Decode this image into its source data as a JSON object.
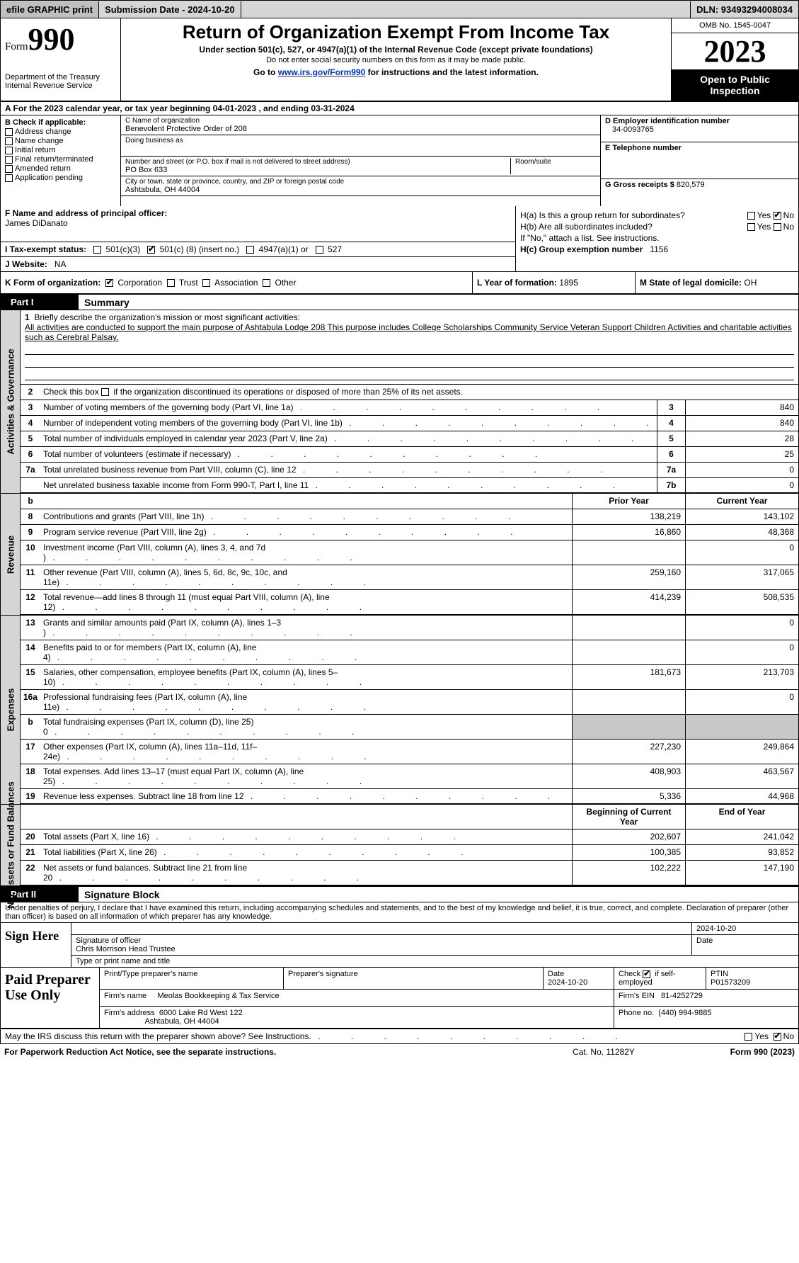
{
  "colors": {
    "bg_grey": "#d6d6d6",
    "cell_grey": "#c8c8c8",
    "black": "#000000",
    "link": "#0033cc"
  },
  "topbar": {
    "efile": "efile GRAPHIC print",
    "submission": "Submission Date - 2024-10-20",
    "dln": "DLN: 93493294008034"
  },
  "header": {
    "form_word": "Form",
    "form_num": "990",
    "title": "Return of Organization Exempt From Income Tax",
    "subtitle": "Under section 501(c), 527, or 4947(a)(1) of the Internal Revenue Code (except private foundations)",
    "note1": "Do not enter social security numbers on this form as it may be made public.",
    "note2_pre": "Go to ",
    "note2_link": "www.irs.gov/Form990",
    "note2_post": " for instructions and the latest information.",
    "dept": "Department of the Treasury Internal Revenue Service",
    "omb": "OMB No. 1545-0047",
    "year": "2023",
    "open": "Open to Public Inspection"
  },
  "line_a": "A  For the 2023 calendar year, or tax year beginning 04-01-2023    , and ending 03-31-2024",
  "box_b": {
    "heading": "B Check if applicable:",
    "items": [
      "Address change",
      "Name change",
      "Initial return",
      "Final return/terminated",
      "Amended return",
      "Application pending"
    ]
  },
  "box_c": {
    "name_label": "C Name of organization",
    "name": "Benevolent Protective Order of 208",
    "dba_label": "Doing business as",
    "addr_label": "Number and street (or P.O. box if mail is not delivered to street address)",
    "addr": "PO Box 633",
    "room_label": "Room/suite",
    "city_label": "City or town, state or province, country, and ZIP or foreign postal code",
    "city": "Ashtabula, OH   44004"
  },
  "box_de": {
    "ein_label": "D Employer identification number",
    "ein": "34-0093765",
    "phone_label": "E Telephone number",
    "gross_label": "G Gross receipts $",
    "gross": "820,579"
  },
  "box_f": {
    "label": "F  Name and address of principal officer:",
    "value": "James DiDanato"
  },
  "box_h": {
    "a_label": "H(a)  Is this a group return for subordinates?",
    "b_label": "H(b)  Are all subordinates included?",
    "b_note": "If \"No,\" attach a list. See instructions.",
    "c_label": "H(c)  Group exemption number",
    "c_value": "1156",
    "yes": "Yes",
    "no": "No"
  },
  "box_i": {
    "label": "I    Tax-exempt status:",
    "opt1": "501(c)(3)",
    "opt2a": "501(c) (",
    "opt2b": "8",
    "opt2c": ") (insert no.)",
    "opt3": "4947(a)(1) or",
    "opt4": "527"
  },
  "box_j": {
    "label": "J   Website:",
    "value": "NA"
  },
  "box_k": {
    "label": "K Form of organization:",
    "opts": [
      "Corporation",
      "Trust",
      "Association",
      "Other"
    ]
  },
  "box_l": {
    "label": "L Year of formation:",
    "value": "1895"
  },
  "box_m": {
    "label": "M State of legal domicile:",
    "value": "OH"
  },
  "part1": {
    "num": "Part I",
    "title": "Summary"
  },
  "mission": {
    "num": "1",
    "prompt": "Briefly describe the organization's mission or most significant activities:",
    "text": "All activities are conducted to support the main purpose of Ashtabula Lodge 208 This purpose includes College Scholarships Community Service Veteran Support Children Activities and charitable activities such as Cerebral Palsay."
  },
  "line2": "Check this box          if the organization discontinued its operations or disposed of more than 25% of its net assets.",
  "vtabs": {
    "gov": "Activities & Governance",
    "rev": "Revenue",
    "exp": "Expenses",
    "net": "Net Assets or Fund Balances"
  },
  "gov_rows": [
    {
      "n": "3",
      "d": "Number of voting members of the governing body (Part VI, line 1a)",
      "box": "3",
      "v": "840"
    },
    {
      "n": "4",
      "d": "Number of independent voting members of the governing body (Part VI, line 1b)",
      "box": "4",
      "v": "840"
    },
    {
      "n": "5",
      "d": "Total number of individuals employed in calendar year 2023 (Part V, line 2a)",
      "box": "5",
      "v": "28"
    },
    {
      "n": "6",
      "d": "Total number of volunteers (estimate if necessary)",
      "box": "6",
      "v": "25"
    },
    {
      "n": "7a",
      "d": "Total unrelated business revenue from Part VIII, column (C), line 12",
      "box": "7a",
      "v": "0"
    },
    {
      "n": "",
      "d": "Net unrelated business taxable income from Form 990-T, Part I, line 11",
      "box": "7b",
      "v": "0"
    }
  ],
  "two_col_hdr": {
    "b": "b",
    "prior": "Prior Year",
    "curr": "Current Year"
  },
  "rev_rows": [
    {
      "n": "8",
      "d": "Contributions and grants (Part VIII, line 1h)",
      "p": "138,219",
      "c": "143,102"
    },
    {
      "n": "9",
      "d": "Program service revenue (Part VIII, line 2g)",
      "p": "16,860",
      "c": "48,368"
    },
    {
      "n": "10",
      "d": "Investment income (Part VIII, column (A), lines 3, 4, and 7d )",
      "p": "",
      "c": "0"
    },
    {
      "n": "11",
      "d": "Other revenue (Part VIII, column (A), lines 5, 6d, 8c, 9c, 10c, and 11e)",
      "p": "259,160",
      "c": "317,065"
    },
    {
      "n": "12",
      "d": "Total revenue—add lines 8 through 11 (must equal Part VIII, column (A), line 12)",
      "p": "414,239",
      "c": "508,535"
    }
  ],
  "exp_rows": [
    {
      "n": "13",
      "d": "Grants and similar amounts paid (Part IX, column (A), lines 1–3 )",
      "p": "",
      "c": "0"
    },
    {
      "n": "14",
      "d": "Benefits paid to or for members (Part IX, column (A), line 4)",
      "p": "",
      "c": "0"
    },
    {
      "n": "15",
      "d": "Salaries, other compensation, employee benefits (Part IX, column (A), lines 5–10)",
      "p": "181,673",
      "c": "213,703"
    },
    {
      "n": "16a",
      "d": "Professional fundraising fees (Part IX, column (A), line 11e)",
      "p": "",
      "c": "0"
    },
    {
      "n": "b",
      "d": "Total fundraising expenses (Part IX, column (D), line 25) 0",
      "p": "GREY",
      "c": "GREY"
    },
    {
      "n": "17",
      "d": "Other expenses (Part IX, column (A), lines 11a–11d, 11f–24e)",
      "p": "227,230",
      "c": "249,864"
    },
    {
      "n": "18",
      "d": "Total expenses. Add lines 13–17 (must equal Part IX, column (A), line 25)",
      "p": "408,903",
      "c": "463,567"
    },
    {
      "n": "19",
      "d": "Revenue less expenses. Subtract line 18 from line 12",
      "p": "5,336",
      "c": "44,968"
    }
  ],
  "net_hdr": {
    "p": "Beginning of Current Year",
    "c": "End of Year"
  },
  "net_rows": [
    {
      "n": "20",
      "d": "Total assets (Part X, line 16)",
      "p": "202,607",
      "c": "241,042"
    },
    {
      "n": "21",
      "d": "Total liabilities (Part X, line 26)",
      "p": "100,385",
      "c": "93,852"
    },
    {
      "n": "22",
      "d": "Net assets or fund balances. Subtract line 21 from line 20",
      "p": "102,222",
      "c": "147,190"
    }
  ],
  "part2": {
    "num": "Part II",
    "title": "Signature Block"
  },
  "penalty": "Under penalties of perjury, I declare that I have examined this return, including accompanying schedules and statements, and to the best of my knowledge and belief, it is true, correct, and complete. Declaration of preparer (other than officer) is based on all information of which preparer has any knowledge.",
  "sign": {
    "label": "Sign Here",
    "date": "2024-10-20",
    "sig_label": "Signature of officer",
    "name": "Chris Morrison  Head Trustee",
    "type_label": "Type or print name and title",
    "date_label": "Date"
  },
  "paid": {
    "label": "Paid Preparer Use Only",
    "print_label": "Print/Type preparer's name",
    "sig_label": "Preparer's signature",
    "date_label": "Date",
    "date": "2024-10-20",
    "check_label_pre": "Check",
    "check_label_post": "if self-employed",
    "ptin_label": "PTIN",
    "ptin": "P01573209",
    "firm_name_label": "Firm's name",
    "firm_name": "Meolas Bookkeeping & Tax Service",
    "firm_ein_label": "Firm's EIN",
    "firm_ein": "81-4252729",
    "firm_addr_label": "Firm's address",
    "firm_addr1": "6000 Lake Rd West 122",
    "firm_addr2": "Ashtabula, OH   44004",
    "phone_label": "Phone no.",
    "phone": "(440) 994-9885"
  },
  "discuss": "May the IRS discuss this return with the preparer shown above? See Instructions.",
  "footer": {
    "left": "For Paperwork Reduction Act Notice, see the separate instructions.",
    "mid": "Cat. No. 11282Y",
    "right": "Form 990 (2023)"
  }
}
